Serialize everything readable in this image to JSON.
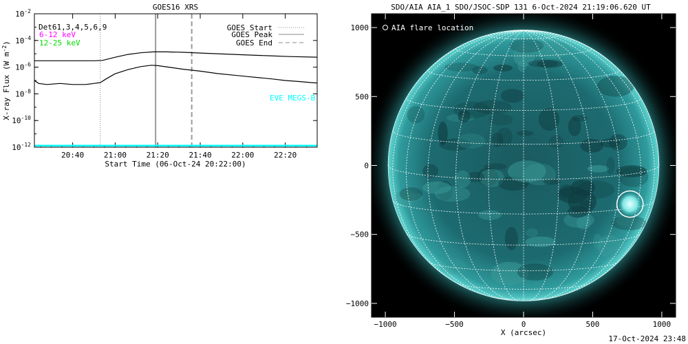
{
  "chart_data": [
    {
      "type": "line",
      "title": "GOES16 XRS",
      "xlabel": "Start Time (06-Oct-24 20:22:00)",
      "ylabel": "X-ray Flux (W m",
      "ylabel_sup": "-2",
      "ylabel_end": ")",
      "log_y": true,
      "ylim": [
        1e-12,
        0.01
      ],
      "y_ticks": [
        {
          "base": "10",
          "exp": "-2",
          "value": 0.01
        },
        {
          "base": "10",
          "exp": "-4",
          "value": 0.0001
        },
        {
          "base": "10",
          "exp": "-6",
          "value": 1e-06
        },
        {
          "base": "10",
          "exp": "-8",
          "value": 1e-08
        },
        {
          "base": "10",
          "exp": "-10",
          "value": 1e-10
        },
        {
          "base": "10",
          "exp": "-12",
          "value": 1e-12
        }
      ],
      "xlim_minutes": [
        0,
        133
      ],
      "x_ticks": [
        {
          "label": "20:40",
          "minutes": 18
        },
        {
          "label": "21:00",
          "minutes": 38
        },
        {
          "label": "21:20",
          "minutes": 58
        },
        {
          "label": "21:40",
          "minutes": 78
        },
        {
          "label": "22:00",
          "minutes": 98
        },
        {
          "label": "22:20",
          "minutes": 118
        }
      ],
      "legend_left": [
        {
          "text": "Det61,3,4,5,6,9",
          "color": "#000000"
        },
        {
          "text": "6-12 keV",
          "color": "#ff00ff"
        },
        {
          "text": "12-25 keV",
          "color": "#00dd00"
        }
      ],
      "legend_right": [
        {
          "text": "GOES Start",
          "style": "dotted"
        },
        {
          "text": "GOES Peak",
          "style": "solid"
        },
        {
          "text": "GOES End",
          "style": "dashed"
        }
      ],
      "vlines_minutes": {
        "start": 31,
        "peak": 57,
        "end": 74
      },
      "annotation": "EVE MEGS-B",
      "annotation_color": "#00ffff",
      "series": [
        {
          "color": "#000000",
          "x_minutes": [
            0,
            10,
            20,
            28,
            32,
            38,
            44,
            50,
            56,
            62,
            70,
            80,
            90,
            100,
            110,
            120,
            133
          ],
          "values": [
            3e-06,
            3e-06,
            3e-06,
            3e-06,
            3.2e-06,
            5.5e-06,
            9e-06,
            1.2e-05,
            1.4e-05,
            1.4e-05,
            1.3e-05,
            1.1e-05,
            9.5e-06,
            8.2e-06,
            7.2e-06,
            6.2e-06,
            5.6e-06
          ]
        },
        {
          "color": "#000000",
          "x_minutes": [
            0,
            2,
            6,
            12,
            18,
            24,
            28,
            31,
            34,
            38,
            44,
            50,
            55,
            58,
            64,
            70,
            78,
            86,
            94,
            100,
            106,
            112,
            118,
            124,
            130,
            133
          ],
          "values": [
            1e-07,
            6e-08,
            5e-08,
            6e-08,
            5e-08,
            5e-08,
            6e-08,
            7e-08,
            1.4e-07,
            3.2e-07,
            6.5e-07,
            1.1e-06,
            1.4e-06,
            1.3e-06,
            9.5e-07,
            7e-07,
            5e-07,
            3.3e-07,
            2.5e-07,
            2e-07,
            1.6e-07,
            1.3e-07,
            1e-07,
            8.5e-08,
            7e-08,
            6.5e-08
          ]
        },
        {
          "color": "#00ffff",
          "x_minutes": [
            0,
            133
          ],
          "values": [
            1.3e-12,
            1.3e-12
          ]
        }
      ]
    },
    {
      "type": "image",
      "title": "SDO/AIA AIA_1 SDO/JSOC-SDP 131  6-Oct-2024 21:19:06.620 UT",
      "xlabel": "X (arcsec)",
      "xlim": [
        -1100,
        1100
      ],
      "ylim": [
        -1100,
        1100
      ],
      "x_ticks": [
        -1000,
        -500,
        0,
        500,
        1000
      ],
      "y_ticks": [
        -1000,
        -500,
        0,
        500,
        1000
      ],
      "legend": "AIA flare location",
      "solar_radius_arcsec": 980,
      "flare_location": {
        "x": 770,
        "y": -280,
        "radius": 95
      },
      "timestamp": "17-Oct-2024 23:48"
    }
  ]
}
